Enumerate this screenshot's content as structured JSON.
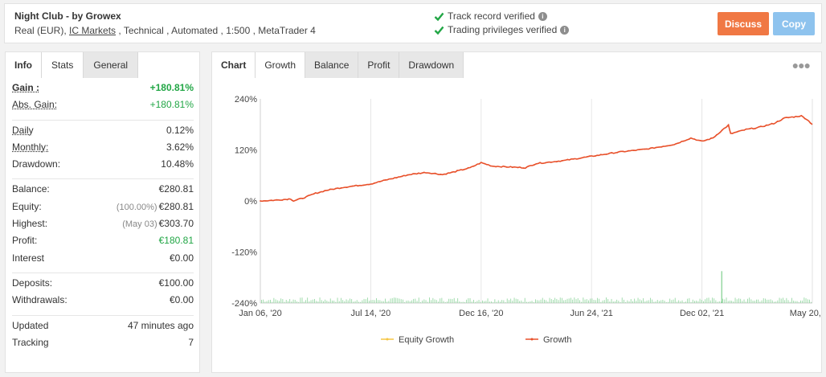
{
  "header": {
    "system_name": "Night Club - by Growex",
    "meta_prefix": "Real (EUR), ",
    "broker": "IC Markets",
    "meta_suffix": " , Technical , Automated , 1:500 , MetaTrader 4",
    "verified_1": "Track record verified",
    "verified_2": "Trading privileges verified",
    "discuss_label": "Discuss",
    "copy_label": "Copy",
    "colors": {
      "discuss": "#f07844",
      "copy": "#8ec3ee",
      "check": "#21a645"
    }
  },
  "left_tabs": [
    {
      "label": "Info"
    },
    {
      "label": "Stats"
    },
    {
      "label": "General"
    }
  ],
  "stats": {
    "gain": {
      "label": "Gain :",
      "value": "+180.81%"
    },
    "abs_gain": {
      "label": "Abs. Gain:",
      "value": "+180.81%"
    },
    "daily": {
      "label": "Daily",
      "value": "0.12%"
    },
    "monthly": {
      "label": "Monthly:",
      "value": "3.62%"
    },
    "drawdown": {
      "label": "Drawdown:",
      "value": "10.48%"
    },
    "balance": {
      "label": "Balance:",
      "value": "€280.81"
    },
    "equity": {
      "label": "Equity:",
      "prefix": "(100.00%)",
      "value": "€280.81"
    },
    "highest": {
      "label": "Highest:",
      "prefix": "(May 03)",
      "value": "€303.70"
    },
    "profit": {
      "label": "Profit:",
      "value": "€180.81"
    },
    "interest": {
      "label": "Interest",
      "value": "€0.00"
    },
    "deposits": {
      "label": "Deposits:",
      "value": "€100.00"
    },
    "withdrawals": {
      "label": "Withdrawals:",
      "value": "€0.00"
    },
    "updated": {
      "label": "Updated",
      "value": "47 minutes ago"
    },
    "tracking": {
      "label": "Tracking",
      "value": "7"
    }
  },
  "chart_tabs": [
    {
      "label": "Chart"
    },
    {
      "label": "Growth"
    },
    {
      "label": "Balance"
    },
    {
      "label": "Profit"
    },
    {
      "label": "Drawdown"
    }
  ],
  "chart_data": {
    "type": "line",
    "title": "",
    "xlabel": "",
    "ylabel": "",
    "ylim": [
      -240,
      240
    ],
    "y_ticks": [
      "240%",
      "120%",
      "0%",
      "-120%",
      "-240%"
    ],
    "y_tick_values": [
      240,
      120,
      0,
      -120,
      -240
    ],
    "x_ticks": [
      "Jan 06, '20",
      "Jul 14, '20",
      "Dec 16, '20",
      "Jun 24, '21",
      "Dec 02, '21",
      "May 20, '22"
    ],
    "x_tick_values": [
      0,
      0.2,
      0.4,
      0.6,
      0.8,
      1.0
    ],
    "grid": "vertical",
    "legend_position": "bottom",
    "series": [
      {
        "name": "Equity Growth",
        "color": "#f5c542",
        "values": []
      },
      {
        "name": "Growth",
        "color": "#e8502a",
        "x": [
          0,
          0.03,
          0.055,
          0.06,
          0.08,
          0.1,
          0.12,
          0.15,
          0.2,
          0.23,
          0.27,
          0.3,
          0.33,
          0.35,
          0.38,
          0.4,
          0.42,
          0.45,
          0.48,
          0.5,
          0.55,
          0.6,
          0.65,
          0.7,
          0.75,
          0.78,
          0.8,
          0.82,
          0.84,
          0.848,
          0.852,
          0.88,
          0.9,
          0.93,
          0.95,
          0.98,
          0.99,
          1.0
        ],
        "values": [
          0,
          2,
          5,
          0,
          8,
          18,
          25,
          32,
          40,
          50,
          62,
          67,
          62,
          68,
          78,
          90,
          82,
          80,
          78,
          88,
          95,
          105,
          115,
          122,
          133,
          148,
          140,
          148,
          170,
          178,
          158,
          168,
          172,
          182,
          195,
          200,
          192,
          180
        ]
      }
    ],
    "volume_bars": {
      "color": "#7ecf8e",
      "spike_x": 0.835,
      "spike_value": -165
    }
  }
}
